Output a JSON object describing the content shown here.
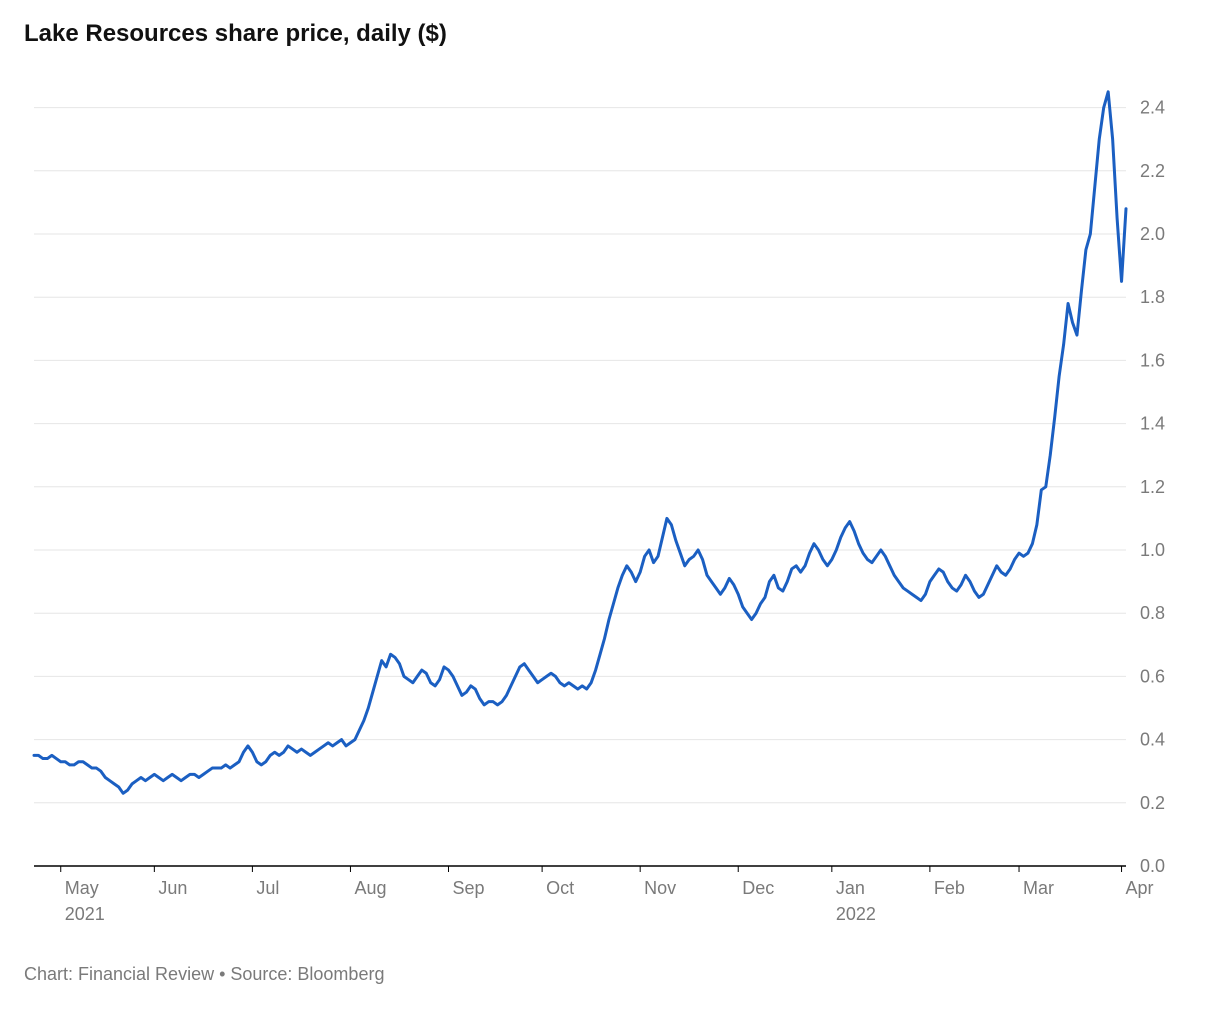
{
  "chart": {
    "type": "line",
    "title": "Lake Resources share price, daily ($)",
    "footer": "Chart: Financial Review • Source: Bloomberg",
    "background_color": "#ffffff",
    "grid_color": "#e6e6e6",
    "axis_color": "#000000",
    "tick_color": "#7a7a7a",
    "tick_font_size": 18,
    "year_font_size": 18,
    "title_font_size": 24,
    "footer_font_size": 18,
    "line_color": "#1b5fc2",
    "line_width": 3,
    "ylim": [
      0.0,
      2.5
    ],
    "yticks": [
      0.0,
      0.2,
      0.4,
      0.6,
      0.8,
      1.0,
      1.2,
      1.4,
      1.6,
      1.8,
      2.0,
      2.2,
      2.4
    ],
    "xlim": [
      0,
      245
    ],
    "xticks": [
      {
        "i": 6,
        "label": "May",
        "year": "2021"
      },
      {
        "i": 27,
        "label": "Jun"
      },
      {
        "i": 49,
        "label": "Jul"
      },
      {
        "i": 71,
        "label": "Aug"
      },
      {
        "i": 93,
        "label": "Sep"
      },
      {
        "i": 114,
        "label": "Oct"
      },
      {
        "i": 136,
        "label": "Nov"
      },
      {
        "i": 158,
        "label": "Dec"
      },
      {
        "i": 179,
        "label": "Jan",
        "year": "2022"
      },
      {
        "i": 201,
        "label": "Feb"
      },
      {
        "i": 221,
        "label": "Mar"
      },
      {
        "i": 244,
        "label": "Apr"
      }
    ],
    "series": {
      "y": [
        0.35,
        0.35,
        0.34,
        0.34,
        0.35,
        0.34,
        0.33,
        0.33,
        0.32,
        0.32,
        0.33,
        0.33,
        0.32,
        0.31,
        0.31,
        0.3,
        0.28,
        0.27,
        0.26,
        0.25,
        0.23,
        0.24,
        0.26,
        0.27,
        0.28,
        0.27,
        0.28,
        0.29,
        0.28,
        0.27,
        0.28,
        0.29,
        0.28,
        0.27,
        0.28,
        0.29,
        0.29,
        0.28,
        0.29,
        0.3,
        0.31,
        0.31,
        0.31,
        0.32,
        0.31,
        0.32,
        0.33,
        0.36,
        0.38,
        0.36,
        0.33,
        0.32,
        0.33,
        0.35,
        0.36,
        0.35,
        0.36,
        0.38,
        0.37,
        0.36,
        0.37,
        0.36,
        0.35,
        0.36,
        0.37,
        0.38,
        0.39,
        0.38,
        0.39,
        0.4,
        0.38,
        0.39,
        0.4,
        0.43,
        0.46,
        0.5,
        0.55,
        0.6,
        0.65,
        0.63,
        0.67,
        0.66,
        0.64,
        0.6,
        0.59,
        0.58,
        0.6,
        0.62,
        0.61,
        0.58,
        0.57,
        0.59,
        0.63,
        0.62,
        0.6,
        0.57,
        0.54,
        0.55,
        0.57,
        0.56,
        0.53,
        0.51,
        0.52,
        0.52,
        0.51,
        0.52,
        0.54,
        0.57,
        0.6,
        0.63,
        0.64,
        0.62,
        0.6,
        0.58,
        0.59,
        0.6,
        0.61,
        0.6,
        0.58,
        0.57,
        0.58,
        0.57,
        0.56,
        0.57,
        0.56,
        0.58,
        0.62,
        0.67,
        0.72,
        0.78,
        0.83,
        0.88,
        0.92,
        0.95,
        0.93,
        0.9,
        0.93,
        0.98,
        1.0,
        0.96,
        0.98,
        1.04,
        1.1,
        1.08,
        1.03,
        0.99,
        0.95,
        0.97,
        0.98,
        1.0,
        0.97,
        0.92,
        0.9,
        0.88,
        0.86,
        0.88,
        0.91,
        0.89,
        0.86,
        0.82,
        0.8,
        0.78,
        0.8,
        0.83,
        0.85,
        0.9,
        0.92,
        0.88,
        0.87,
        0.9,
        0.94,
        0.95,
        0.93,
        0.95,
        0.99,
        1.02,
        1.0,
        0.97,
        0.95,
        0.97,
        1.0,
        1.04,
        1.07,
        1.09,
        1.06,
        1.02,
        0.99,
        0.97,
        0.96,
        0.98,
        1.0,
        0.98,
        0.95,
        0.92,
        0.9,
        0.88,
        0.87,
        0.86,
        0.85,
        0.84,
        0.86,
        0.9,
        0.92,
        0.94,
        0.93,
        0.9,
        0.88,
        0.87,
        0.89,
        0.92,
        0.9,
        0.87,
        0.85,
        0.86,
        0.89,
        0.92,
        0.95,
        0.93,
        0.92,
        0.94,
        0.97,
        0.99,
        0.98,
        0.99,
        1.02,
        1.08,
        1.19,
        1.2,
        1.3,
        1.42,
        1.55,
        1.65,
        1.78,
        1.72,
        1.68,
        1.82,
        1.95,
        2.0,
        2.15,
        2.3,
        2.4,
        2.45,
        2.3,
        2.05,
        1.85,
        2.08
      ]
    }
  }
}
